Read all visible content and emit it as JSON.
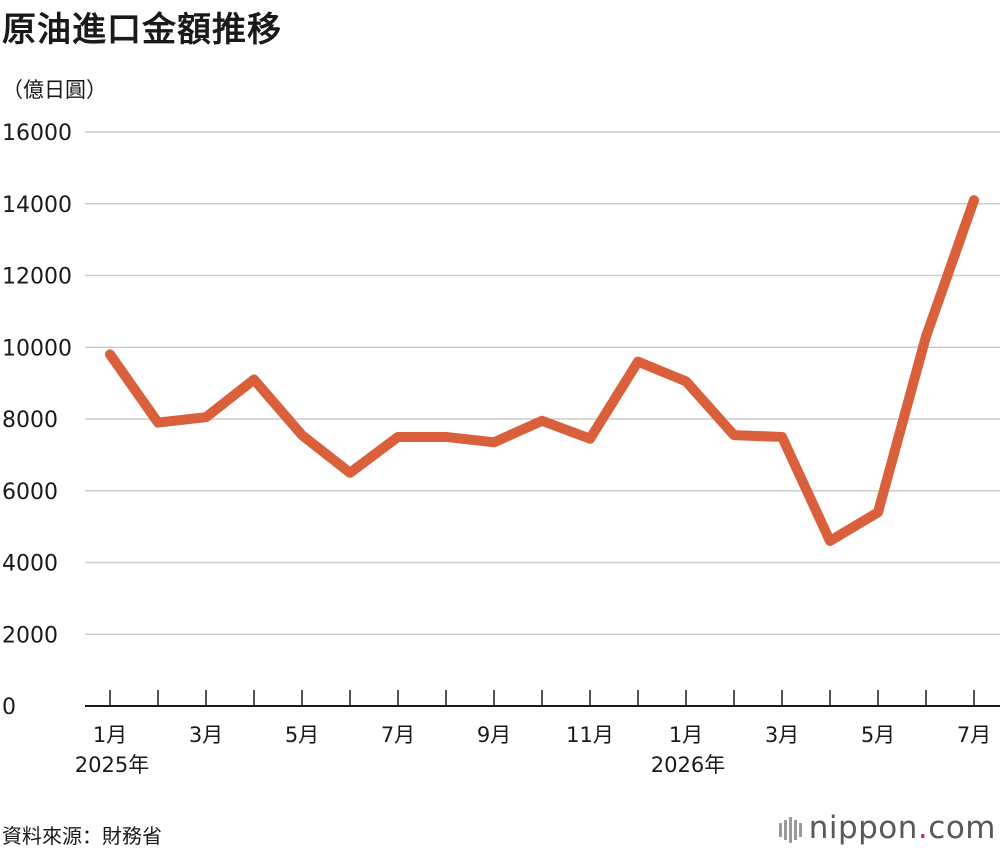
{
  "title": "原油進口金額推移",
  "unit_label": "（億日圓）",
  "source": "資料來源：財務省",
  "logo": {
    "name": "nippon",
    "dot": ".",
    "tld": "com"
  },
  "colors": {
    "line": "#d9603b",
    "grid": "#cccccc",
    "axis": "#1a1a1a",
    "text": "#1a1a1a"
  },
  "chart_data": {
    "type": "line",
    "title": "原油進口金額推移",
    "ylabel": "（億日圓）",
    "ylim": [
      0,
      16000
    ],
    "yticks": [
      "0",
      "2000",
      "4000",
      "6000",
      "8000",
      "10000",
      "12000",
      "14000",
      "16000"
    ],
    "x_labels": [
      "1月",
      "",
      "3月",
      "",
      "5月",
      "",
      "7月",
      "",
      "9月",
      "",
      "11月",
      "",
      "1月",
      "",
      "3月",
      "",
      "5月",
      "",
      "7月"
    ],
    "year_labels": [
      {
        "index": 0,
        "text": "2025年"
      },
      {
        "index": 12,
        "text": "2026年"
      }
    ],
    "grid": true,
    "series": [
      {
        "values": [
          9800,
          7900,
          8050,
          9100,
          7550,
          6500,
          7500,
          7500,
          7350,
          7950,
          7450,
          9600,
          9050,
          7550,
          7500,
          4600,
          5400,
          10300,
          14100
        ]
      }
    ]
  }
}
